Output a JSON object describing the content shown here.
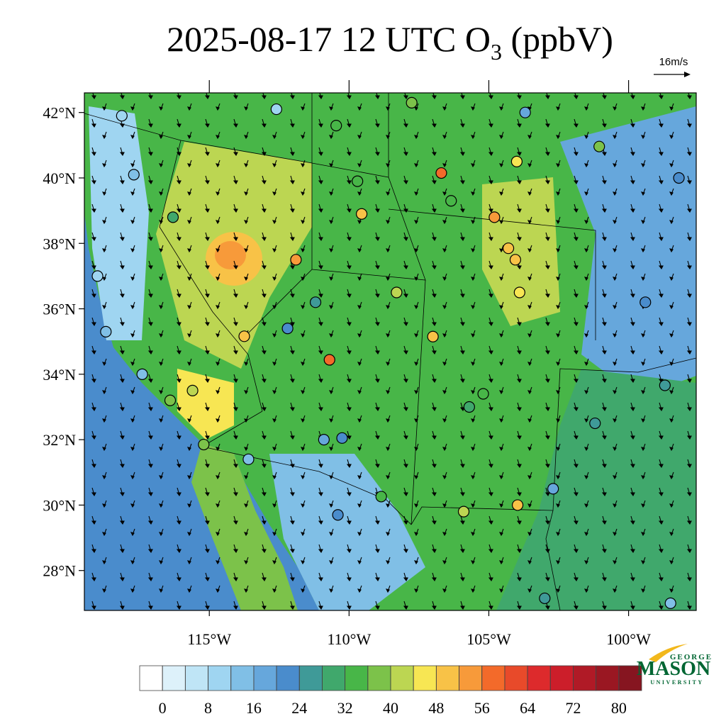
{
  "title": {
    "main": "2025-08-17 12 UTC O",
    "subscript": "3",
    "suffix": " (ppbV)"
  },
  "reference_vector": "16m/s",
  "map": {
    "xlim": [
      -119.47,
      -97.58
    ],
    "ylim": [
      26.78,
      42.6
    ],
    "yticks": [
      {
        "value": 42,
        "label": "42°N"
      },
      {
        "value": 40,
        "label": "40°N"
      },
      {
        "value": 38,
        "label": "38°N"
      },
      {
        "value": 36,
        "label": "36°N"
      },
      {
        "value": 34,
        "label": "34°N"
      },
      {
        "value": 32,
        "label": "32°N"
      },
      {
        "value": 30,
        "label": "30°N"
      },
      {
        "value": 28,
        "label": "28°N"
      }
    ],
    "xticks": [
      {
        "value": -115,
        "label": "115°W"
      },
      {
        "value": -110,
        "label": "110°W"
      },
      {
        "value": -105,
        "label": "105°W"
      },
      {
        "value": -100,
        "label": "100°W"
      }
    ]
  },
  "colorbar": {
    "levels": [
      0,
      4,
      8,
      12,
      16,
      20,
      24,
      28,
      32,
      36,
      40,
      44,
      48,
      52,
      56,
      60,
      64,
      68,
      72,
      76,
      80
    ],
    "colors": [
      "#ffffff",
      "#ddf1fa",
      "#bfe5f6",
      "#9fd5f1",
      "#80bfe6",
      "#66a7dc",
      "#4a8ccc",
      "#3f9a98",
      "#40a86c",
      "#48b648",
      "#7cc24a",
      "#bcd652",
      "#f7e653",
      "#f8c247",
      "#f79a3a",
      "#f36a2a",
      "#e84a2a",
      "#dd2a2c",
      "#cc1e2a",
      "#b01a26",
      "#9a1722",
      "#861520"
    ],
    "ticks": [
      0,
      8,
      16,
      24,
      32,
      40,
      48,
      56,
      64,
      72,
      80
    ]
  },
  "stations": [
    {
      "lon": -118.13,
      "lat": 41.9,
      "value": 10
    },
    {
      "lon": -112.6,
      "lat": 42.1,
      "value": 10
    },
    {
      "lon": -110.46,
      "lat": 41.6,
      "value": 34
    },
    {
      "lon": -107.76,
      "lat": 42.3,
      "value": 36
    },
    {
      "lon": -103.7,
      "lat": 42.0,
      "value": 18
    },
    {
      "lon": -101.05,
      "lat": 40.96,
      "value": 38
    },
    {
      "lon": -106.7,
      "lat": 40.15,
      "value": 56
    },
    {
      "lon": -104.0,
      "lat": 40.5,
      "value": 44
    },
    {
      "lon": -109.7,
      "lat": 39.9,
      "value": 34
    },
    {
      "lon": -109.55,
      "lat": 38.9,
      "value": 48
    },
    {
      "lon": -111.9,
      "lat": 37.5,
      "value": 52
    },
    {
      "lon": -104.3,
      "lat": 37.85,
      "value": 48
    },
    {
      "lon": -104.05,
      "lat": 37.5,
      "value": 50
    },
    {
      "lon": -103.9,
      "lat": 36.5,
      "value": 44
    },
    {
      "lon": -108.3,
      "lat": 36.5,
      "value": 42
    },
    {
      "lon": -110.7,
      "lat": 34.44,
      "value": 58
    },
    {
      "lon": -113.75,
      "lat": 35.16,
      "value": 48
    },
    {
      "lon": -107.0,
      "lat": 35.15,
      "value": 48
    },
    {
      "lon": -103.97,
      "lat": 30.0,
      "value": 48
    },
    {
      "lon": -105.9,
      "lat": 29.8,
      "value": 40
    },
    {
      "lon": -111.2,
      "lat": 36.2,
      "value": 24
    },
    {
      "lon": -112.2,
      "lat": 35.4,
      "value": 22
    },
    {
      "lon": -119.0,
      "lat": 37.0,
      "value": 10
    },
    {
      "lon": -118.7,
      "lat": 35.3,
      "value": 12
    },
    {
      "lon": -117.4,
      "lat": 34.0,
      "value": 14
    },
    {
      "lon": -116.4,
      "lat": 33.2,
      "value": 38
    },
    {
      "lon": -115.6,
      "lat": 33.5,
      "value": 40
    },
    {
      "lon": -115.2,
      "lat": 31.85,
      "value": 36
    },
    {
      "lon": -113.6,
      "lat": 31.4,
      "value": 14
    },
    {
      "lon": -110.9,
      "lat": 32.0,
      "value": 16
    },
    {
      "lon": -110.25,
      "lat": 32.05,
      "value": 22
    },
    {
      "lon": -108.85,
      "lat": 30.26,
      "value": 32
    },
    {
      "lon": -110.4,
      "lat": 29.7,
      "value": 20
    },
    {
      "lon": -99.4,
      "lat": 36.2,
      "value": 22
    },
    {
      "lon": -98.7,
      "lat": 33.66,
      "value": 26
    },
    {
      "lon": -101.2,
      "lat": 32.5,
      "value": 24
    },
    {
      "lon": -102.7,
      "lat": 30.5,
      "value": 18
    },
    {
      "lon": -103.0,
      "lat": 27.15,
      "value": 26
    },
    {
      "lon": -98.5,
      "lat": 27.0,
      "value": 12
    },
    {
      "lon": -98.2,
      "lat": 40.0,
      "value": 22
    },
    {
      "lon": -116.3,
      "lat": 38.8,
      "value": 28
    },
    {
      "lon": -117.7,
      "lat": 40.1,
      "value": 12
    },
    {
      "lon": -106.35,
      "lat": 39.3,
      "value": 32
    },
    {
      "lon": -104.8,
      "lat": 38.8,
      "value": 54
    },
    {
      "lon": -105.2,
      "lat": 33.4,
      "value": 34
    },
    {
      "lon": -105.7,
      "lat": 33.0,
      "value": 30
    }
  ],
  "logo": {
    "top": "GEORGE",
    "name": "MASON",
    "bottom": "UNIVERSITY"
  }
}
